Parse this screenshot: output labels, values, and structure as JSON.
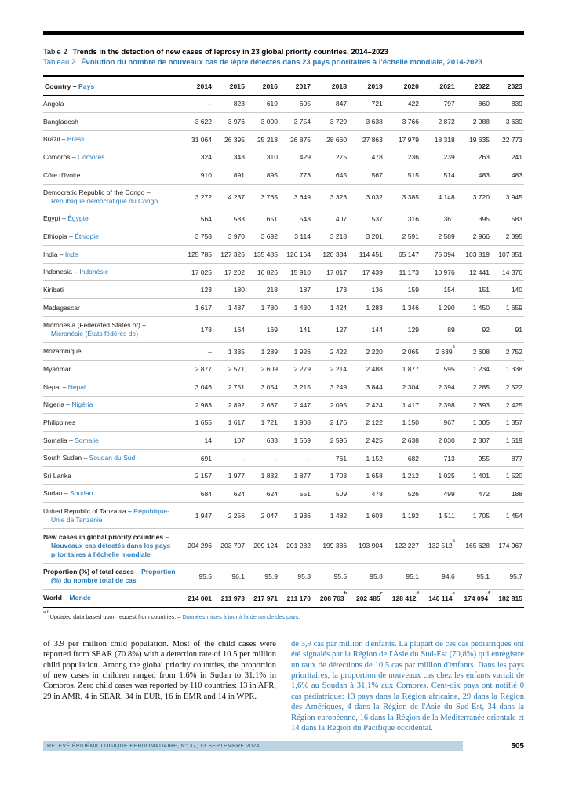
{
  "colors": {
    "accent_blue": "#2878b8",
    "footer_bg": "#bdd3e1",
    "footer_text": "#1c5878"
  },
  "table": {
    "label_en": "Table 2",
    "title_en": "Trends in the detection of new cases of leprosy in 23 global priority countries, 2014–2023",
    "label_fr": "Tableau 2",
    "title_fr": "Évolution du nombre de nouveaux cas de lèpre détectés dans 23 pays prioritaires à l'échelle mondiale, 2014-2023",
    "country_header_en": "Country –",
    "country_header_fr": "Pays",
    "years": [
      "2014",
      "2015",
      "2016",
      "2017",
      "2018",
      "2019",
      "2020",
      "2021",
      "2022",
      "2023"
    ],
    "rows": [
      {
        "en": "Angola",
        "fr": "",
        "values": [
          "–",
          "823",
          "619",
          "605",
          "847",
          "721",
          "422",
          "797",
          "860",
          "839"
        ]
      },
      {
        "en": "Bangladesh",
        "fr": "",
        "values": [
          "3 622",
          "3 976",
          "3 000",
          "3 754",
          "3 729",
          "3 638",
          "3 766",
          "2 872",
          "2 988",
          "3 639"
        ]
      },
      {
        "en": "Brazil –",
        "fr": "Brésil",
        "values": [
          "31 064",
          "26 395",
          "25 218",
          "26 875",
          "28 660",
          "27 863",
          "17 979",
          "18 318",
          "19 635",
          "22 773"
        ]
      },
      {
        "en": "Comoros –",
        "fr": "Comores",
        "values": [
          "324",
          "343",
          "310",
          "429",
          "275",
          "478",
          "236",
          "239",
          "263",
          "241"
        ]
      },
      {
        "en": "Côte d'Ivoire",
        "fr": "",
        "values": [
          "910",
          "891",
          "895",
          "773",
          "645",
          "567",
          "515",
          "514",
          "483",
          "483"
        ]
      },
      {
        "en": "Democratic Republic of the Congo –",
        "fr": "République démocratique du Congo",
        "values": [
          "3 272",
          "4 237",
          "3 765",
          "3 649",
          "3 323",
          "3 032",
          "3 385",
          "4 148",
          "3 720",
          "3 945"
        ]
      },
      {
        "en": "Egypt –",
        "fr": "Égypte",
        "values": [
          "564",
          "583",
          "651",
          "543",
          "407",
          "537",
          "316",
          "361",
          "395",
          "583"
        ]
      },
      {
        "en": "Ethiopia –",
        "fr": "Éthiopie",
        "values": [
          "3 758",
          "3 970",
          "3 692",
          "3 114",
          "3 218",
          "3 201",
          "2 591",
          "2 589",
          "2 966",
          "2 395"
        ]
      },
      {
        "en": "India –",
        "fr": "Inde",
        "values": [
          "125 785",
          "127 326",
          "135 485",
          "126 164",
          "120 334",
          "114 451",
          "65 147",
          "75 394",
          "103 819",
          "107 851"
        ]
      },
      {
        "en": "Indonesia –",
        "fr": "Indonésie",
        "values": [
          "17 025",
          "17 202",
          "16 826",
          "15 910",
          "17 017",
          "17 439",
          "11 173",
          "10 976",
          "12 441",
          "14 376"
        ]
      },
      {
        "en": "Kiribati",
        "fr": "",
        "values": [
          "123",
          "180",
          "218",
          "187",
          "173",
          "136",
          "159",
          "154",
          "151",
          "140"
        ]
      },
      {
        "en": "Madagascar",
        "fr": "",
        "values": [
          "1 617",
          "1 487",
          "1 780",
          "1 430",
          "1 424",
          "1 283",
          "1 346",
          "1 290",
          "1 450",
          "1 659"
        ]
      },
      {
        "en": "Micronesia (Federated States of) –",
        "fr": "Micronésie (États fédérés de)",
        "values": [
          "178",
          "164",
          "169",
          "141",
          "127",
          "144",
          "129",
          "89",
          "92",
          "91"
        ]
      },
      {
        "en": "Mozambique",
        "fr": "",
        "values": [
          "–",
          "1 335",
          "1 289",
          "1 926",
          "2 422",
          "2 220",
          "2 065",
          "2 639^a",
          "2 608",
          "2 752"
        ]
      },
      {
        "en": "Myanmar",
        "fr": "",
        "values": [
          "2 877",
          "2 571",
          "2 609",
          "2 279",
          "2 214",
          "2 488",
          "1 877",
          "595",
          "1 234",
          "1 338"
        ]
      },
      {
        "en": "Nepal –",
        "fr": "Népal",
        "values": [
          "3 046",
          "2 751",
          "3 054",
          "3 215",
          "3 249",
          "3 844",
          "2 304",
          "2 394",
          "2 285",
          "2 522"
        ]
      },
      {
        "en": "Nigeria –",
        "fr": "Nigéria",
        "values": [
          "2 983",
          "2 892",
          "2 687",
          "2 447",
          "2 095",
          "2 424",
          "1 417",
          "2 398",
          "2 393",
          "2 425"
        ]
      },
      {
        "en": "Philippines",
        "fr": "",
        "values": [
          "1 655",
          "1 617",
          "1 721",
          "1 908",
          "2 176",
          "2 122",
          "1 150",
          "967",
          "1 005",
          "1 357"
        ]
      },
      {
        "en": "Somalia –",
        "fr": "Somalie",
        "values": [
          "14",
          "107",
          "633",
          "1 569",
          "2 596",
          "2 425",
          "2 638",
          "2 030",
          "2 307",
          "1 519"
        ]
      },
      {
        "en": "South Sudan –",
        "fr": "Soudan du Sud",
        "values": [
          "691",
          "–",
          "–",
          "–",
          "761",
          "1 152",
          "682",
          "713",
          "955",
          "877"
        ]
      },
      {
        "en": "Sri Lanka",
        "fr": "",
        "values": [
          "2 157",
          "1 977",
          "1 832",
          "1 877",
          "1 703",
          "1 658",
          "1 212",
          "1 025",
          "1 401",
          "1 520"
        ]
      },
      {
        "en": "Sudan –",
        "fr": "Soudan",
        "values": [
          "684",
          "624",
          "624",
          "551",
          "509",
          "478",
          "526",
          "499",
          "472",
          "188"
        ]
      },
      {
        "en": "United Republic of Tanzania –",
        "fr": "République-Unie de Tanzanie",
        "values": [
          "1 947",
          "2 256",
          "2 047",
          "1 936",
          "1 482",
          "1 603",
          "1 192",
          "1 511",
          "1 705",
          "1 454"
        ]
      }
    ],
    "totals": [
      {
        "kind": "total-new",
        "en": "New cases in global priority countries",
        "fr": "– Nouveaux cas détectés dans les pays prioritaires à l'échelle mondiale",
        "values": [
          "204 296",
          "203 707",
          "209 124",
          "201 282",
          "199 386",
          "193 904",
          "122 227",
          "132 512^a",
          "165 628",
          "174 967"
        ]
      },
      {
        "kind": "total-prop",
        "en": "Proportion (%) of total cases –",
        "fr": "Proportion (%) du nombre total de cas",
        "values": [
          "95.5",
          "96.1",
          "95.9",
          "95.3",
          "95.5",
          "95.8",
          "95.1",
          "94.6",
          "95.1",
          "95.7"
        ]
      },
      {
        "kind": "total-world",
        "en": "World –",
        "fr": "Monde",
        "values": [
          "214 001",
          "211 973",
          "217 971",
          "211 170",
          "208 763^b",
          "202 485^c",
          "128 412^d",
          "140 114^e",
          "174 094^f",
          "182 815"
        ]
      }
    ],
    "footnote_sup": "a-f",
    "footnote_en": "Updated data based upon request from countries. –",
    "footnote_fr": "Données mises à jour à la demande des pays."
  },
  "body": {
    "en": "of 3.9 per million child population. Most of the child cases were reported from SEAR (70.8%) with a detection rate of 10.5 per million child population. Among the global priority countries, the proportion of new cases in children ranged from 1.6% in Sudan to 31.1% in Comoros. Zero child cases was reported by 110 countries: 13 in AFR, 29 in AMR, 4 in SEAR, 34 in EUR, 16 in EMR and 14 in WPR.",
    "fr": "de 3,9 cas par million d'enfants. La plupart de ces cas pédiatriques ont été signalés par la Région de l'Asie du Sud-Est (70,8%) qui enregistre un taux de détections de 10,5 cas par million d'enfants. Dans les pays prioritaires, la proportion de nouveaux cas chez les enfants variait de 1,6% au Soudan à 31,1% aux Comores. Cent-dix pays ont notifié 0 cas pédiatrique: 13 pays dans la Région africaine, 29 dans la Région des Amériques, 4 dans la Région de l'Asie du Sud-Est, 34 dans la Région européenne, 16 dans la Région de la Méditerranée orientale et 14 dans la Région du Pacifique occidental."
  },
  "page": {
    "footer_journal": "RELEVÉ ÉPIDÉMIOLOGIQUE HEBDOMADAIRE, N° 37, 13 SEPTEMBRE 2024",
    "footer_page": "505"
  }
}
